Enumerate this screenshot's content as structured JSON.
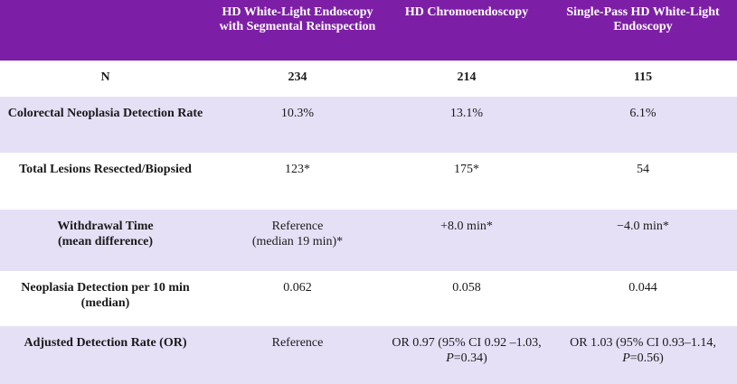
{
  "columns": [
    "",
    "HD White-Light Endoscopy with Segmental Reinspection",
    "HD Chromoendoscopy",
    "Single-Pass HD White-Light Endoscopy"
  ],
  "rows": [
    {
      "label": "N",
      "values": [
        "234",
        "214",
        "115"
      ]
    },
    {
      "label": "Colorectal Neoplasia Detection Rate",
      "values": [
        "10.3%",
        "13.1%",
        "6.1%"
      ]
    },
    {
      "label": "Total Lesions Resected/Biopsied",
      "values": [
        "123*",
        "175*",
        "54"
      ]
    },
    {
      "label": "Withdrawal Time",
      "label_sub": "(mean difference)",
      "values": [
        "Reference",
        "+8.0 min*",
        "−4.0 min*"
      ],
      "value0_sub": "(median 19 min)*"
    },
    {
      "label": "Neoplasia Detection per 10 min (median)",
      "values": [
        "0.062",
        "0.058",
        "0.044"
      ]
    },
    {
      "label": "Adjusted Detection Rate (OR)",
      "values": [
        "Reference"
      ],
      "or_chromo": {
        "pre": "OR 0.97 (95% CI 0.92 –1.03, ",
        "p_label": "P",
        "post": "=0.34)"
      },
      "or_single": {
        "pre": "OR 1.03 (95% CI 0.93–1.14, ",
        "p_label": "P",
        "post": "=0.56)"
      }
    }
  ]
}
